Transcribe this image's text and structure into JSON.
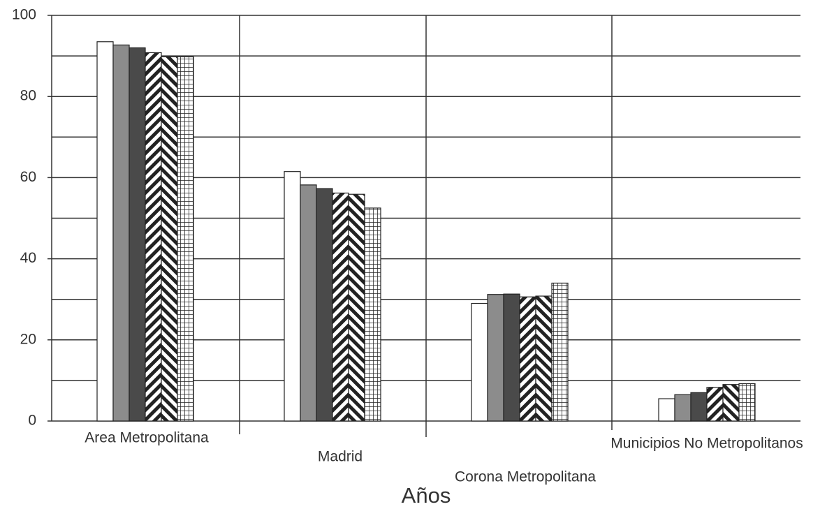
{
  "chart_data": {
    "type": "bar",
    "x_label": "Años",
    "categories": [
      "Area Metropolitana",
      "Madrid",
      "Corona Metropolitana",
      "Municipios No Metropolitanos"
    ],
    "series": [
      {
        "color": "#ffffff",
        "pattern": "solid",
        "values": [
          93.5,
          61.5,
          29,
          5.5
        ]
      },
      {
        "color": "#8c8c8c",
        "pattern": "solid",
        "values": [
          92.7,
          58.2,
          31.2,
          6.5
        ]
      },
      {
        "color": "#4a4a4a",
        "pattern": "solid",
        "values": [
          92,
          57.3,
          31.3,
          7
        ]
      },
      {
        "color": "#222222",
        "pattern": "diagonal",
        "values": [
          90.8,
          56.2,
          30.6,
          8.3
        ]
      },
      {
        "color": "#222222",
        "pattern": "anti-diagonal",
        "values": [
          89.8,
          55.9,
          30.8,
          9
        ]
      },
      {
        "color": "#222222",
        "pattern": "grid",
        "values": [
          89.8,
          52.5,
          34,
          9.2
        ]
      }
    ],
    "ylim": [
      0,
      100
    ],
    "yticks": [
      0,
      20,
      40,
      60,
      80,
      100
    ],
    "minor_yticks": [
      10,
      30,
      50,
      70,
      90
    ],
    "grid": true
  }
}
